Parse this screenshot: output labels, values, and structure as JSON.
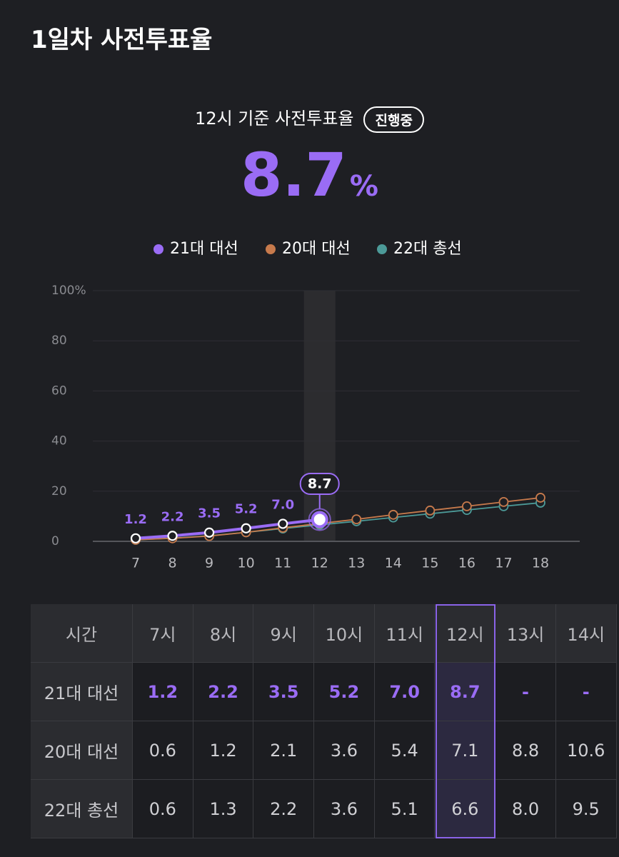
{
  "header": {
    "title": "1일차 사전투표율"
  },
  "summary": {
    "caption": "12시 기준 사전투표율",
    "badge": "진행중",
    "value": "8.7",
    "unit": "%"
  },
  "chart_data": {
    "type": "line",
    "categories": [
      "7",
      "8",
      "9",
      "10",
      "11",
      "12",
      "13",
      "14",
      "15",
      "16",
      "17",
      "18"
    ],
    "series": [
      {
        "name": "21대 대선",
        "color": "#9a6cf5",
        "values": [
          1.2,
          2.2,
          3.5,
          5.2,
          7.0,
          8.7,
          null,
          null,
          null,
          null,
          null,
          null
        ],
        "value_labels": [
          "1.2",
          "2.2",
          "3.5",
          "5.2",
          "7.0",
          "8.7",
          null,
          null,
          null,
          null,
          null,
          null
        ]
      },
      {
        "name": "20대 대선",
        "color": "#c77a4c",
        "values": [
          0.6,
          1.2,
          2.1,
          3.6,
          5.4,
          7.1,
          8.8,
          10.6,
          12.3,
          14.0,
          15.7,
          17.4
        ]
      },
      {
        "name": "22대 총선",
        "color": "#4c9a98",
        "values": [
          0.6,
          1.3,
          2.2,
          3.6,
          5.1,
          6.6,
          8.0,
          9.5,
          11.0,
          12.5,
          14.0,
          15.4
        ]
      }
    ],
    "ylim": [
      0,
      100
    ],
    "yticks": [
      0,
      20,
      40,
      60,
      80,
      {
        "value": 100,
        "label": "100%"
      }
    ],
    "grid": true,
    "legend": "top",
    "highlight_index": 5
  },
  "table": {
    "header": [
      "시간",
      "7시",
      "8시",
      "9시",
      "10시",
      "11시",
      "12시",
      "13시",
      "14시"
    ],
    "rows": [
      [
        "21대 대선",
        "1.2",
        "2.2",
        "3.5",
        "5.2",
        "7.0",
        "8.7",
        "-",
        "-"
      ],
      [
        "20대 대선",
        "0.6",
        "1.2",
        "2.1",
        "3.6",
        "5.4",
        "7.1",
        "8.8",
        "10.6"
      ],
      [
        "22대 총선",
        "0.6",
        "1.3",
        "2.2",
        "3.6",
        "5.1",
        "6.6",
        "8.0",
        "9.5"
      ]
    ],
    "highlight_column": 6
  }
}
